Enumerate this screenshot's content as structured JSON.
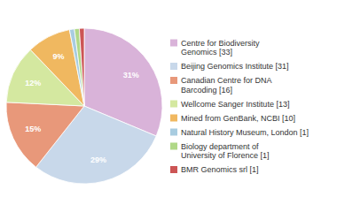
{
  "chart_data": {
    "type": "pie",
    "categories": [
      "Centre for Biodiversity\nGenomics [33]",
      "Beijing Genomics Institute [31]",
      "Canadian Centre for DNA\nBarcoding [16]",
      "Wellcome Sanger Institute [13]",
      "Mined from GenBank, NCBI [10]",
      "Natural History Museum, London [1]",
      "Biology department of\nUniversity of Florence [1]",
      "BMR Genomics srl [1]"
    ],
    "values": [
      31,
      29,
      15,
      12,
      9,
      1,
      1,
      1
    ],
    "value_labels": [
      "31%",
      "29%",
      "15%",
      "12%",
      "9%",
      null,
      null,
      null
    ],
    "colors": [
      "#d9b3d9",
      "#c8d8ea",
      "#e8987a",
      "#d4e8a0",
      "#f0b860",
      "#a8cce0",
      "#b0d888",
      "#cc5555"
    ],
    "data_labels": true,
    "legend": "right"
  }
}
